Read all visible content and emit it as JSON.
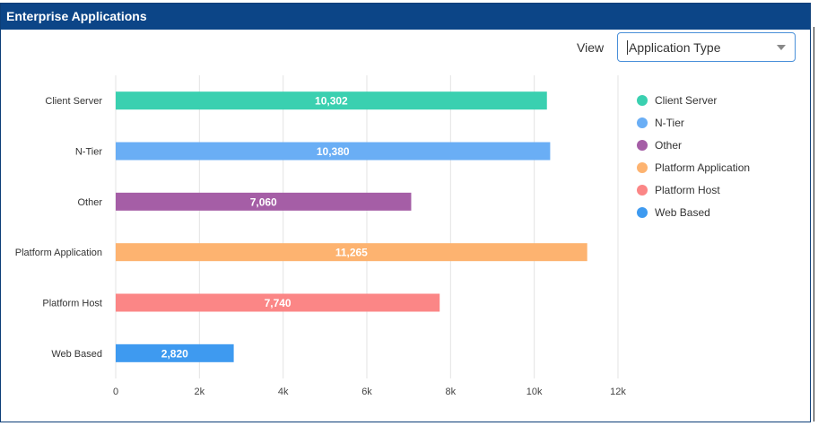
{
  "header": {
    "title": "Enterprise Applications"
  },
  "controls": {
    "view_label": "View",
    "view_value": "Application Type"
  },
  "chart_data": {
    "type": "bar",
    "orientation": "horizontal",
    "categories": [
      "Client Server",
      "N-Tier",
      "Other",
      "Platform Application",
      "Platform Host",
      "Web Based"
    ],
    "values": [
      10302,
      10380,
      7060,
      11265,
      7740,
      2820
    ],
    "value_labels": [
      "10,302",
      "10,380",
      "7,060",
      "11,265",
      "7,740",
      "2,820"
    ],
    "colors": [
      "#3ad0b0",
      "#6aaef5",
      "#a55ea6",
      "#fdb370",
      "#fb8686",
      "#3e9af0"
    ],
    "xlim": [
      0,
      12000
    ],
    "xticks": [
      0,
      2000,
      4000,
      6000,
      8000,
      10000,
      12000
    ],
    "xtick_labels": [
      "0",
      "2k",
      "4k",
      "6k",
      "8k",
      "10k",
      "12k"
    ],
    "grid": true,
    "legend_position": "right",
    "legend": [
      "Client Server",
      "N-Tier",
      "Other",
      "Platform Application",
      "Platform Host",
      "Web Based"
    ]
  }
}
